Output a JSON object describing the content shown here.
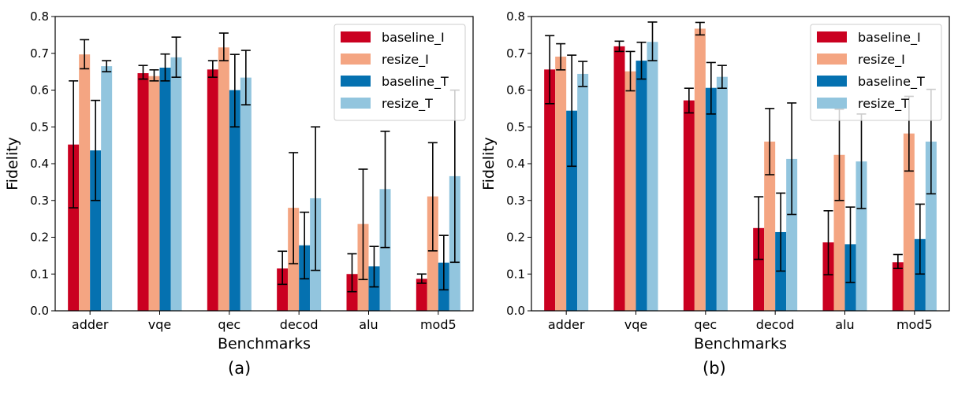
{
  "colors": {
    "baseline_I": "#ca0020",
    "resize_I": "#f4a582",
    "baseline_T": "#0571b0",
    "resize_T": "#92c5de"
  },
  "chart_data": [
    {
      "type": "bar",
      "caption": "(a)",
      "xlabel": "Benchmarks",
      "ylabel": "Fidelity",
      "ylim": [
        0,
        0.8
      ],
      "yticks": [
        "0.0",
        "0.1",
        "0.2",
        "0.3",
        "0.4",
        "0.5",
        "0.6",
        "0.7",
        "0.8"
      ],
      "legend_position": "top-right",
      "categories": [
        "adder",
        "vqe",
        "qec",
        "decod",
        "alu",
        "mod5"
      ],
      "series": [
        {
          "name": "baseline_I",
          "color_key": "baseline_I",
          "values": [
            0.452,
            0.646,
            0.656,
            0.115,
            0.1,
            0.087
          ],
          "err_low": [
            0.28,
            0.63,
            0.635,
            0.072,
            0.052,
            0.075
          ],
          "err_high": [
            0.625,
            0.667,
            0.68,
            0.162,
            0.155,
            0.1
          ]
        },
        {
          "name": "resize_I",
          "color_key": "resize_I",
          "values": [
            0.697,
            0.638,
            0.716,
            0.28,
            0.236,
            0.311
          ],
          "err_low": [
            0.658,
            0.625,
            0.68,
            0.128,
            0.085,
            0.163
          ],
          "err_high": [
            0.737,
            0.655,
            0.755,
            0.43,
            0.385,
            0.457
          ]
        },
        {
          "name": "baseline_T",
          "color_key": "baseline_T",
          "values": [
            0.436,
            0.661,
            0.6,
            0.178,
            0.121,
            0.131
          ],
          "err_low": [
            0.3,
            0.625,
            0.5,
            0.087,
            0.065,
            0.057
          ],
          "err_high": [
            0.572,
            0.698,
            0.697,
            0.268,
            0.175,
            0.205
          ]
        },
        {
          "name": "resize_T",
          "color_key": "resize_T",
          "values": [
            0.665,
            0.689,
            0.634,
            0.306,
            0.331,
            0.366
          ],
          "err_low": [
            0.65,
            0.635,
            0.56,
            0.11,
            0.172,
            0.132
          ],
          "err_high": [
            0.68,
            0.744,
            0.708,
            0.5,
            0.488,
            0.6
          ]
        }
      ]
    },
    {
      "type": "bar",
      "caption": "(b)",
      "xlabel": "Benchmarks",
      "ylabel": "Fidelity",
      "ylim": [
        0,
        0.8
      ],
      "yticks": [
        "0.0",
        "0.1",
        "0.2",
        "0.3",
        "0.4",
        "0.5",
        "0.6",
        "0.7",
        "0.8"
      ],
      "legend_position": "top-right",
      "categories": [
        "adder",
        "vqe",
        "qec",
        "decod",
        "alu",
        "mod5"
      ],
      "series": [
        {
          "name": "baseline_I",
          "color_key": "baseline_I",
          "values": [
            0.656,
            0.719,
            0.572,
            0.225,
            0.186,
            0.132
          ],
          "err_low": [
            0.563,
            0.705,
            0.538,
            0.14,
            0.098,
            0.115
          ],
          "err_high": [
            0.748,
            0.733,
            0.605,
            0.31,
            0.272,
            0.153
          ]
        },
        {
          "name": "resize_I",
          "color_key": "resize_I",
          "values": [
            0.691,
            0.651,
            0.767,
            0.46,
            0.424,
            0.482
          ],
          "err_low": [
            0.655,
            0.598,
            0.75,
            0.37,
            0.3,
            0.38
          ],
          "err_high": [
            0.726,
            0.705,
            0.784,
            0.55,
            0.548,
            0.583
          ]
        },
        {
          "name": "baseline_T",
          "color_key": "baseline_T",
          "values": [
            0.544,
            0.68,
            0.606,
            0.214,
            0.181,
            0.195
          ],
          "err_low": [
            0.393,
            0.63,
            0.535,
            0.108,
            0.077,
            0.1
          ],
          "err_high": [
            0.695,
            0.73,
            0.675,
            0.32,
            0.282,
            0.29
          ]
        },
        {
          "name": "resize_T",
          "color_key": "resize_T",
          "values": [
            0.644,
            0.731,
            0.636,
            0.413,
            0.406,
            0.46
          ],
          "err_low": [
            0.61,
            0.68,
            0.605,
            0.262,
            0.278,
            0.318
          ],
          "err_high": [
            0.678,
            0.785,
            0.667,
            0.565,
            0.535,
            0.602
          ]
        }
      ]
    }
  ]
}
